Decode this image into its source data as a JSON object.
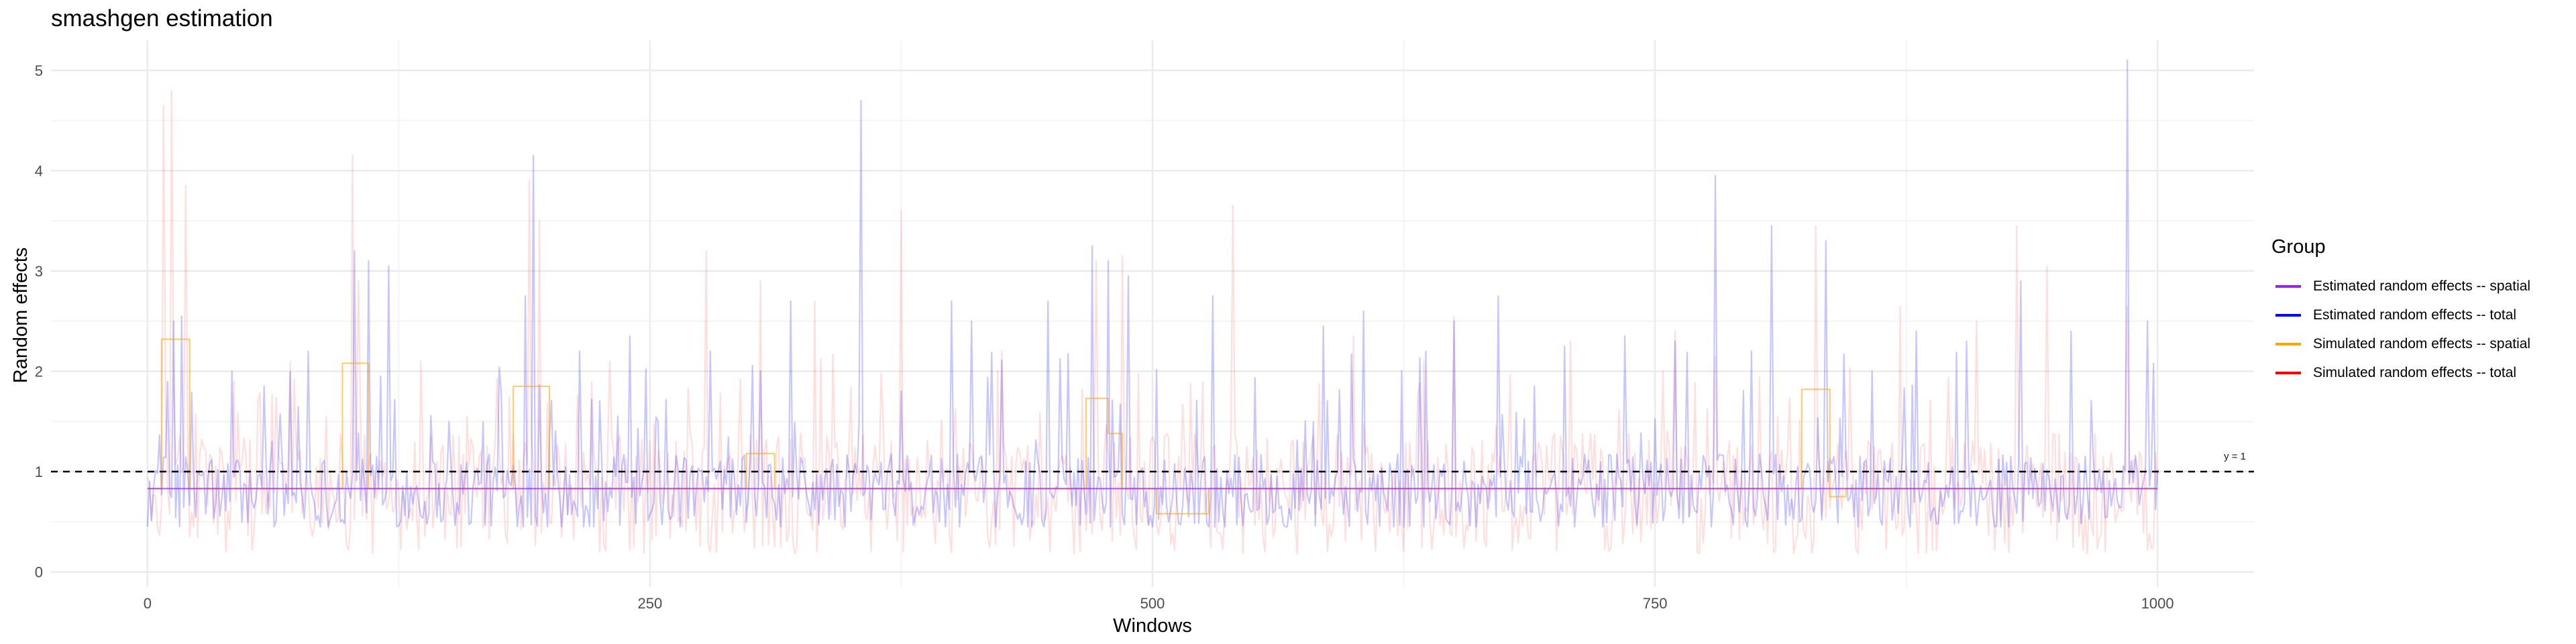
{
  "chart_data": {
    "type": "line",
    "title": "smashgen estimation",
    "xlabel": "Windows",
    "ylabel": "Random effects",
    "xlim": [
      -48,
      1048
    ],
    "ylim": [
      -0.15,
      5.3
    ],
    "x_ticks": [
      0,
      250,
      500,
      750,
      1000
    ],
    "y_ticks": [
      0,
      1,
      2,
      3,
      4,
      5
    ],
    "grid": true,
    "legend_position": "right",
    "legend_title": "Group",
    "reference_line": {
      "y": 1,
      "label": "y = 1",
      "style": "dashed",
      "color": "#000000"
    },
    "n_windows": 1000,
    "series": [
      {
        "name": "Estimated random effects -- spatial",
        "color": "#a020f0",
        "opacity": 0.75,
        "points": [
          [
            0,
            0.83
          ],
          [
            1000,
            0.83
          ]
        ]
      },
      {
        "name": "Estimated random effects -- total",
        "color": "#0000ff",
        "opacity": 0.22,
        "baseline": 0.8,
        "peaks": [
          [
            13,
            2.5
          ],
          [
            17,
            2.55
          ],
          [
            42,
            2.0
          ],
          [
            58,
            1.85
          ],
          [
            80,
            2.2
          ],
          [
            103,
            3.2
          ],
          [
            110,
            3.1
          ],
          [
            120,
            3.05
          ],
          [
            150,
            1.5
          ],
          [
            188,
            2.75
          ],
          [
            192,
            4.15
          ],
          [
            215,
            2.2
          ],
          [
            240,
            2.35
          ],
          [
            280,
            2.2
          ],
          [
            305,
            2.0
          ],
          [
            320,
            2.7
          ],
          [
            355,
            4.7
          ],
          [
            375,
            1.8
          ],
          [
            400,
            2.7
          ],
          [
            410,
            2.5
          ],
          [
            448,
            2.7
          ],
          [
            470,
            3.25
          ],
          [
            478,
            3.1
          ],
          [
            488,
            2.95
          ],
          [
            530,
            2.75
          ],
          [
            585,
            2.45
          ],
          [
            605,
            2.6
          ],
          [
            636,
            2.2
          ],
          [
            650,
            2.5
          ],
          [
            672,
            2.75
          ],
          [
            690,
            1.85
          ],
          [
            705,
            2.25
          ],
          [
            735,
            2.35
          ],
          [
            760,
            2.3
          ],
          [
            780,
            3.95
          ],
          [
            798,
            2.2
          ],
          [
            808,
            3.45
          ],
          [
            835,
            3.3
          ],
          [
            858,
            2.0
          ],
          [
            880,
            2.4
          ],
          [
            905,
            2.3
          ],
          [
            932,
            2.9
          ],
          [
            957,
            2.4
          ],
          [
            985,
            5.1
          ],
          [
            995,
            2.5
          ]
        ]
      },
      {
        "name": "Simulated random effects -- spatial",
        "color": "#ffa500",
        "opacity": 0.6,
        "points": [
          [
            0,
            0.83
          ],
          [
            7,
            0.83
          ],
          [
            7,
            2.32
          ],
          [
            21,
            2.32
          ],
          [
            21,
            0.83
          ],
          [
            97,
            0.83
          ],
          [
            97,
            2.08
          ],
          [
            110,
            2.08
          ],
          [
            110,
            0.83
          ],
          [
            182,
            0.83
          ],
          [
            182,
            1.85
          ],
          [
            200,
            1.85
          ],
          [
            200,
            0.83
          ],
          [
            298,
            0.83
          ],
          [
            298,
            1.18
          ],
          [
            312,
            1.18
          ],
          [
            312,
            0.83
          ],
          [
            467,
            0.83
          ],
          [
            467,
            1.73
          ],
          [
            478,
            1.73
          ],
          [
            478,
            1.38
          ],
          [
            485,
            1.38
          ],
          [
            485,
            0.83
          ],
          [
            502,
            0.83
          ],
          [
            502,
            0.58
          ],
          [
            528,
            0.58
          ],
          [
            528,
            0.83
          ],
          [
            823,
            0.83
          ],
          [
            823,
            1.82
          ],
          [
            837,
            1.82
          ],
          [
            837,
            0.75
          ],
          [
            845,
            0.75
          ],
          [
            845,
            0.83
          ],
          [
            1000,
            0.83
          ]
        ]
      },
      {
        "name": "Simulated random effects -- total",
        "color": "#ff0000",
        "opacity": 0.13,
        "baseline": 0.78,
        "peaks": [
          [
            8,
            4.65
          ],
          [
            12,
            4.8
          ],
          [
            19,
            3.85
          ],
          [
            43,
            1.9
          ],
          [
            102,
            4.15
          ],
          [
            105,
            2.9
          ],
          [
            190,
            3.9
          ],
          [
            195,
            3.5
          ],
          [
            230,
            2.1
          ],
          [
            278,
            3.2
          ],
          [
            305,
            2.9
          ],
          [
            332,
            2.7
          ],
          [
            375,
            3.6
          ],
          [
            425,
            2.2
          ],
          [
            472,
            3.1
          ],
          [
            485,
            3.15
          ],
          [
            540,
            3.65
          ],
          [
            600,
            2.35
          ],
          [
            650,
            2.55
          ],
          [
            708,
            2.3
          ],
          [
            760,
            2.4
          ],
          [
            830,
            3.45
          ],
          [
            872,
            2.65
          ],
          [
            910,
            2.5
          ],
          [
            930,
            3.45
          ],
          [
            945,
            3.05
          ],
          [
            985,
            2.65
          ]
        ]
      }
    ]
  }
}
